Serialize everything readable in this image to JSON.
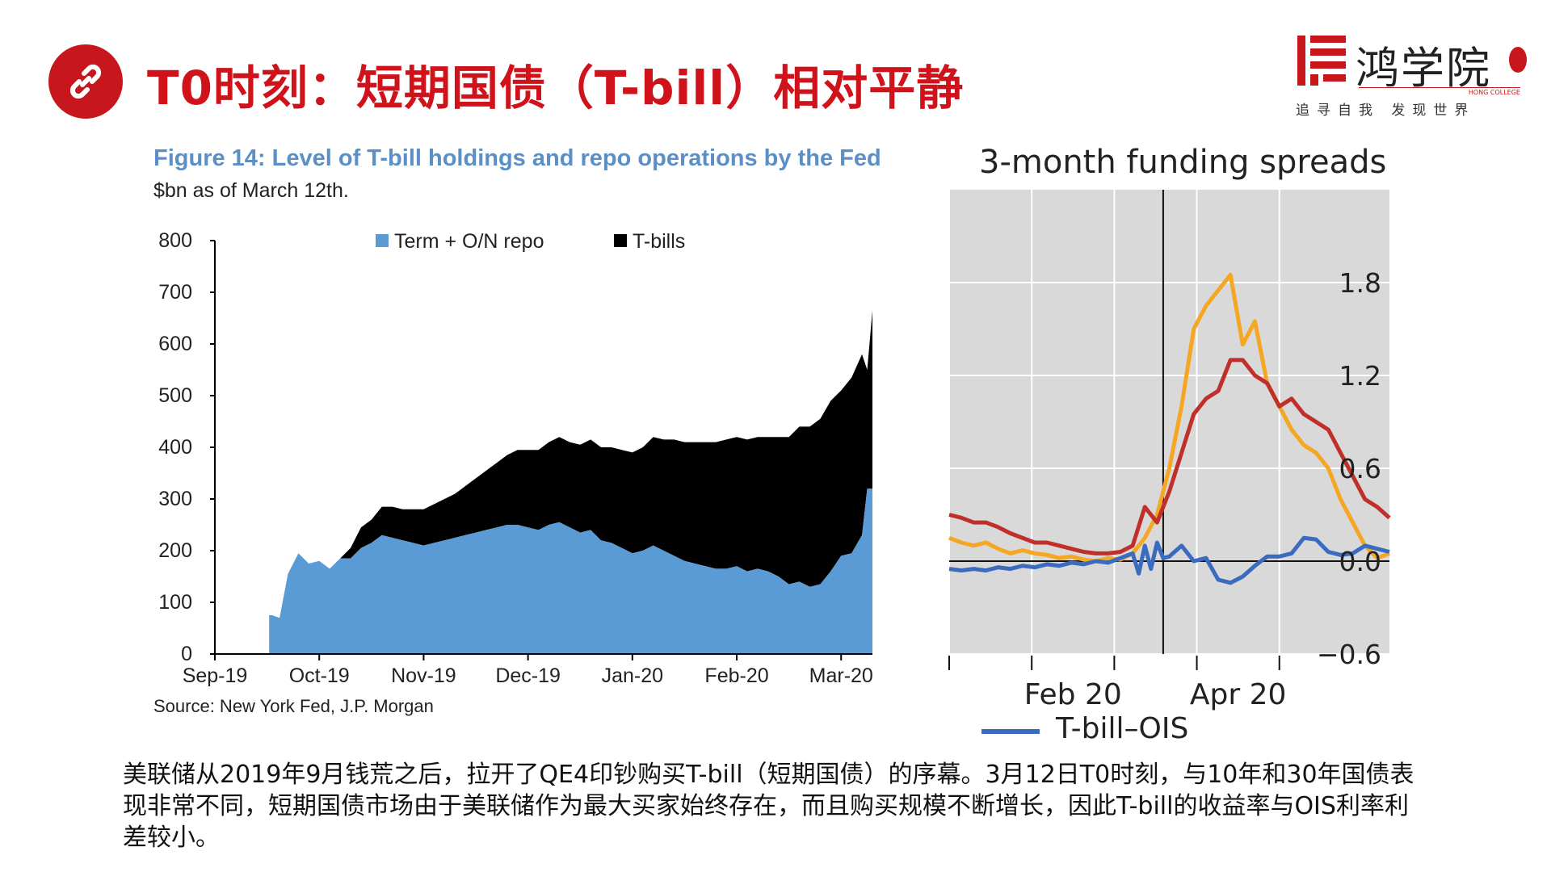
{
  "slide": {
    "title": "T0时刻：短期国债（T-bill）相对平静",
    "body_text": "美联储从2019年9月钱荒之后，拉开了QE4印钞购买T-bill（短期国债）的序幕。3月12日T0时刻，与10年和30年国债表现非常不同，短期国债市场由于美联储作为最大买家始终存在，而且购买规模不断增长，因此T-bill的收益率与OIS利率利差较小。",
    "icon": "link-icon",
    "accent_color": "#c8161d"
  },
  "logo": {
    "name": "鸿学院",
    "tagline": "追寻自我  发现世界",
    "english": "HONG COLLEGE"
  },
  "chart_data": [
    {
      "type": "area",
      "title": "Figure 14: Level of T-bill holdings and repo operations by the Fed",
      "subtitle": "$bn as of March 12th.",
      "source": "Source: New York Fed, J.P. Morgan",
      "legend_position": "top",
      "ylim": [
        0,
        800
      ],
      "yticks": [
        0,
        100,
        200,
        300,
        400,
        500,
        600,
        700,
        800
      ],
      "xticks": [
        "Sep-19",
        "Oct-19",
        "Nov-19",
        "Dec-19",
        "Jan-20",
        "Feb-20",
        "Mar-20"
      ],
      "grid": false,
      "stacked": true,
      "x": [
        0.52,
        0.55,
        0.62,
        0.7,
        0.8,
        0.9,
        1.0,
        1.1,
        1.2,
        1.3,
        1.4,
        1.5,
        1.6,
        1.7,
        1.8,
        1.9,
        2.0,
        2.1,
        2.2,
        2.3,
        2.4,
        2.5,
        2.6,
        2.7,
        2.8,
        2.9,
        3.0,
        3.1,
        3.2,
        3.3,
        3.4,
        3.5,
        3.6,
        3.7,
        3.8,
        3.9,
        4.0,
        4.1,
        4.2,
        4.3,
        4.4,
        4.5,
        4.6,
        4.7,
        4.8,
        4.9,
        5.0,
        5.1,
        5.2,
        5.3,
        5.4,
        5.5,
        5.6,
        5.7,
        5.8,
        5.9,
        6.0,
        6.1,
        6.2,
        6.25,
        6.3
      ],
      "series": [
        {
          "name": "Term + O/N repo",
          "color": "#5b9bd5",
          "values": [
            75,
            75,
            70,
            155,
            195,
            175,
            180,
            165,
            185,
            185,
            205,
            215,
            230,
            225,
            220,
            215,
            210,
            215,
            220,
            225,
            230,
            235,
            240,
            245,
            250,
            250,
            245,
            240,
            250,
            255,
            245,
            235,
            240,
            220,
            215,
            205,
            195,
            200,
            210,
            200,
            190,
            180,
            175,
            170,
            165,
            165,
            170,
            160,
            165,
            160,
            150,
            135,
            140,
            130,
            135,
            160,
            190,
            195,
            230,
            320,
            320
          ]
        },
        {
          "name": "T-bills",
          "color": "#000000",
          "values": [
            0,
            0,
            0,
            0,
            0,
            0,
            0,
            0,
            0,
            20,
            40,
            45,
            55,
            60,
            60,
            65,
            70,
            75,
            80,
            85,
            95,
            105,
            115,
            125,
            135,
            145,
            150,
            155,
            160,
            165,
            165,
            170,
            175,
            180,
            185,
            190,
            195,
            200,
            210,
            215,
            225,
            230,
            235,
            240,
            245,
            250,
            250,
            255,
            255,
            260,
            270,
            285,
            300,
            310,
            320,
            330,
            320,
            340,
            350,
            230,
            345
          ]
        }
      ]
    },
    {
      "type": "line",
      "title": "3-month funding spreads",
      "legend_position": "bottom",
      "ylim": [
        -0.6,
        2.4
      ],
      "yticks": [
        "1.8",
        "1.2",
        "0.6",
        "0.0",
        "−0.6"
      ],
      "xtick_labels": [
        "Feb 20",
        "Apr 20"
      ],
      "grid": true,
      "background": "#d9d9d9",
      "series": [
        {
          "name": "T-bill–OIS",
          "color": "#3a6bbf",
          "x": [
            0,
            2,
            4,
            6,
            8,
            10,
            12,
            14,
            16,
            18,
            20,
            22,
            24,
            26,
            28,
            30,
            31,
            32,
            33,
            34,
            35,
            36,
            38,
            40,
            42,
            44,
            46,
            48,
            50,
            52,
            54,
            56,
            58,
            60,
            62,
            64,
            66,
            68,
            70,
            72
          ],
          "values": [
            -0.05,
            -0.06,
            -0.05,
            -0.06,
            -0.04,
            -0.05,
            -0.03,
            -0.04,
            -0.02,
            -0.03,
            -0.01,
            -0.02,
            0.0,
            -0.01,
            0.02,
            0.05,
            -0.08,
            0.1,
            -0.05,
            0.12,
            0.02,
            0.03,
            0.1,
            0.0,
            0.02,
            -0.12,
            -0.14,
            -0.1,
            -0.03,
            0.03,
            0.03,
            0.05,
            0.15,
            0.14,
            0.06,
            0.04,
            0.05,
            0.1,
            0.08,
            0.06
          ]
        },
        {
          "name": "",
          "color": "#f5a623",
          "x": [
            0,
            2,
            4,
            6,
            8,
            10,
            12,
            14,
            16,
            18,
            20,
            22,
            24,
            26,
            28,
            30,
            32,
            34,
            36,
            38,
            40,
            42,
            44,
            46,
            48,
            50,
            52,
            54,
            56,
            58,
            60,
            62,
            64,
            66,
            68,
            70,
            72
          ],
          "values": [
            0.15,
            0.12,
            0.1,
            0.12,
            0.08,
            0.05,
            0.07,
            0.05,
            0.04,
            0.02,
            0.03,
            0.01,
            0.0,
            0.02,
            0.01,
            0.05,
            0.15,
            0.3,
            0.6,
            1.0,
            1.5,
            1.65,
            1.75,
            1.85,
            1.4,
            1.55,
            1.15,
            1.0,
            0.85,
            0.75,
            0.7,
            0.6,
            0.4,
            0.25,
            0.1,
            0.02,
            0.05
          ]
        },
        {
          "name": "",
          "color": "#c0302b",
          "x": [
            0,
            2,
            4,
            6,
            8,
            10,
            12,
            14,
            16,
            18,
            20,
            22,
            24,
            26,
            28,
            30,
            32,
            34,
            36,
            38,
            40,
            42,
            44,
            46,
            48,
            50,
            52,
            54,
            56,
            58,
            60,
            62,
            64,
            66,
            68,
            70,
            72
          ],
          "values": [
            0.3,
            0.28,
            0.25,
            0.25,
            0.22,
            0.18,
            0.15,
            0.12,
            0.12,
            0.1,
            0.08,
            0.06,
            0.05,
            0.05,
            0.06,
            0.1,
            0.35,
            0.25,
            0.45,
            0.7,
            0.95,
            1.05,
            1.1,
            1.3,
            1.3,
            1.2,
            1.15,
            1.0,
            1.05,
            0.95,
            0.9,
            0.85,
            0.7,
            0.55,
            0.4,
            0.35,
            0.28
          ]
        }
      ]
    }
  ]
}
